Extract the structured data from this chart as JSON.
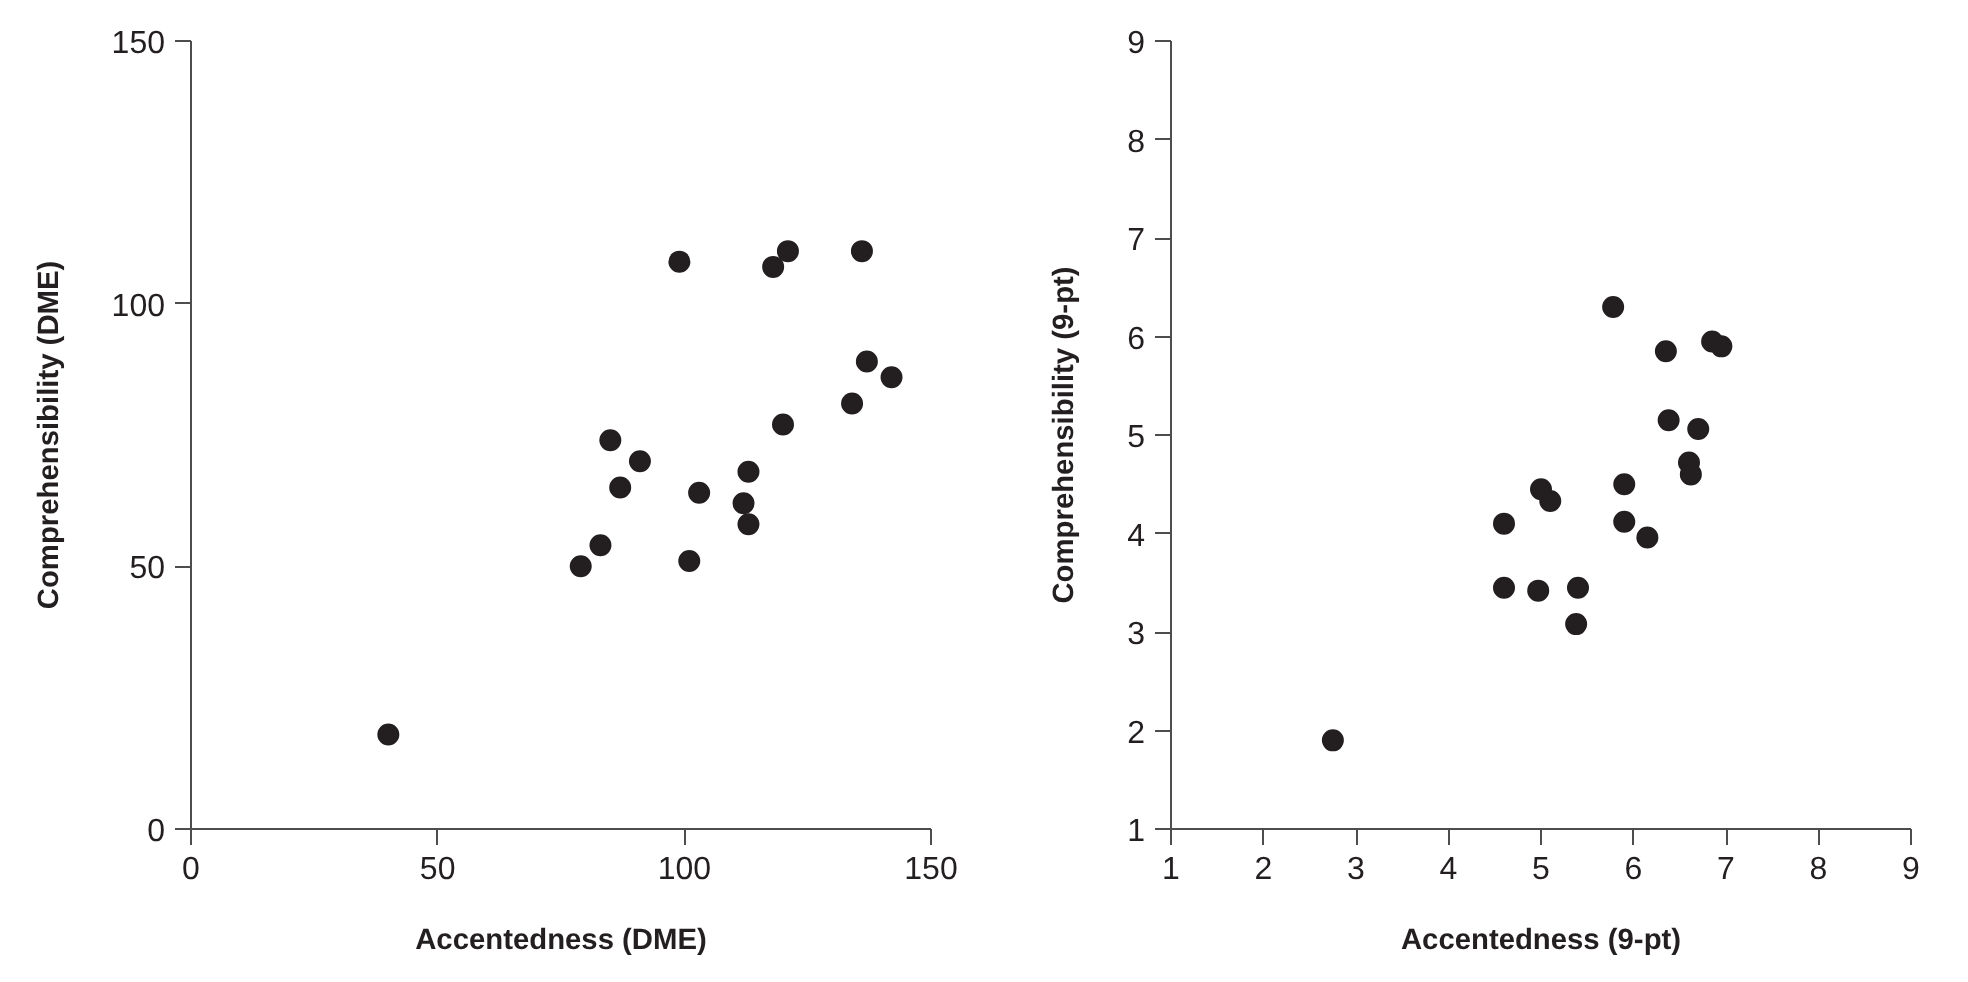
{
  "chart_data": [
    {
      "type": "scatter",
      "xlabel": "Accentedness (DME)",
      "ylabel": "Comprehensibility (DME)",
      "marker": "circle",
      "xlim": [
        0,
        150
      ],
      "ylim": [
        0,
        150
      ],
      "xticks": [
        0,
        50,
        100,
        150
      ],
      "yticks": [
        0,
        50,
        100,
        150
      ],
      "series": [
        {
          "color": "#231f20",
          "x": [
            40,
            99,
            118,
            121,
            136,
            137,
            142,
            134,
            120,
            85,
            91,
            87,
            103,
            113,
            112,
            113,
            83,
            79,
            101
          ],
          "values": [
            18,
            108,
            107,
            110,
            110,
            89,
            86,
            81,
            77,
            74,
            70,
            65,
            64,
            68,
            62,
            58,
            54,
            50,
            51
          ]
        }
      ]
    },
    {
      "type": "scatter",
      "xlabel": "Accentedness (9-pt)",
      "ylabel": "Comprehensibility (9-pt)",
      "marker": "circle",
      "xlim": [
        1,
        9
      ],
      "ylim": [
        1,
        9
      ],
      "xticks": [
        1,
        2,
        3,
        4,
        5,
        6,
        7,
        8,
        9
      ],
      "yticks": [
        1,
        2,
        3,
        4,
        5,
        6,
        7,
        8,
        9
      ],
      "series": [
        {
          "color": "#231f20",
          "x": [
            2.75,
            4.6,
            4.6,
            5.0,
            5.1,
            4.97,
            5.4,
            5.38,
            5.78,
            5.9,
            5.9,
            6.15,
            6.35,
            6.38,
            6.6,
            6.62,
            6.7,
            6.85,
            6.95
          ],
          "values": [
            1.9,
            4.1,
            3.45,
            4.45,
            4.33,
            3.42,
            3.45,
            3.08,
            6.3,
            4.5,
            4.12,
            3.96,
            5.85,
            5.15,
            4.72,
            4.6,
            5.06,
            5.95,
            5.9
          ]
        }
      ]
    }
  ]
}
